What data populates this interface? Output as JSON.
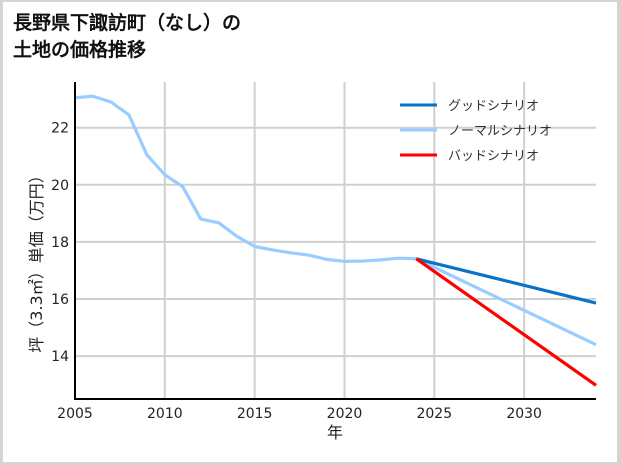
{
  "header": {
    "title_line1": "長野県下諏訪町（なし）の",
    "title_line2": "土地の価格推移"
  },
  "colors": {
    "good": "#0a72c8",
    "normal": "#99ccff",
    "bad": "#ff0000",
    "grid": "#d0d0d0",
    "axis": "#000000"
  },
  "chart_data": {
    "type": "line",
    "title": "長野県下諏訪町（なし）の土地の価格推移",
    "xlabel": "年",
    "ylabel": "坪（3.3㎡）単価（万円）",
    "xlim": [
      2005,
      2034
    ],
    "ylim": [
      12.5,
      23.6
    ],
    "xticks": [
      2005,
      2010,
      2015,
      2020,
      2025,
      2030
    ],
    "yticks": [
      14,
      16,
      18,
      20,
      22
    ],
    "grid": true,
    "legend_position": "upper right",
    "legend": [
      "グッドシナリオ",
      "ノーマルシナリオ",
      "バッドシナリオ"
    ],
    "series": [
      {
        "name": "ノーマルシナリオ",
        "color": "#99ccff",
        "x": [
          2005,
          2006,
          2007,
          2008,
          2009,
          2010,
          2011,
          2012,
          2013,
          2014,
          2015,
          2016,
          2017,
          2018,
          2019,
          2020,
          2021,
          2022,
          2023,
          2024,
          2034
        ],
        "values": [
          23.05,
          23.1,
          22.9,
          22.45,
          21.05,
          20.35,
          19.93,
          18.8,
          18.67,
          18.2,
          17.84,
          17.72,
          17.62,
          17.54,
          17.39,
          17.32,
          17.33,
          17.37,
          17.43,
          17.41,
          14.4
        ]
      },
      {
        "name": "グッドシナリオ",
        "color": "#0a72c8",
        "x": [
          2024,
          2034
        ],
        "values": [
          17.41,
          15.86
        ]
      },
      {
        "name": "バッドシナリオ",
        "color": "#ff0000",
        "x": [
          2024,
          2034
        ],
        "values": [
          17.41,
          12.98
        ]
      }
    ]
  }
}
